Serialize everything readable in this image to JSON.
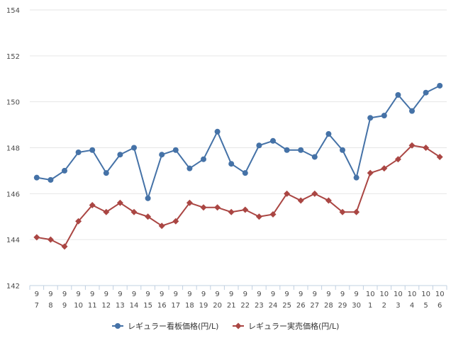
{
  "chart_data": {
    "type": "line",
    "categories": [
      [
        "9",
        "7"
      ],
      [
        "9",
        "8"
      ],
      [
        "9",
        "9"
      ],
      [
        "9",
        "10"
      ],
      [
        "9",
        "11"
      ],
      [
        "9",
        "12"
      ],
      [
        "9",
        "13"
      ],
      [
        "9",
        "14"
      ],
      [
        "9",
        "15"
      ],
      [
        "9",
        "16"
      ],
      [
        "9",
        "17"
      ],
      [
        "9",
        "18"
      ],
      [
        "9",
        "19"
      ],
      [
        "9",
        "20"
      ],
      [
        "9",
        "21"
      ],
      [
        "9",
        "22"
      ],
      [
        "9",
        "23"
      ],
      [
        "9",
        "24"
      ],
      [
        "9",
        "25"
      ],
      [
        "9",
        "26"
      ],
      [
        "9",
        "27"
      ],
      [
        "9",
        "28"
      ],
      [
        "9",
        "29"
      ],
      [
        "9",
        "30"
      ],
      [
        "10",
        "1"
      ],
      [
        "10",
        "2"
      ],
      [
        "10",
        "3"
      ],
      [
        "10",
        "4"
      ],
      [
        "10",
        "5"
      ],
      [
        "10",
        "6"
      ]
    ],
    "series": [
      {
        "name": "レギュラー看板価格(円/L)",
        "color": "#4572a7",
        "marker": "circle",
        "values": [
          146.7,
          146.6,
          147.0,
          147.8,
          147.9,
          146.9,
          147.7,
          148.0,
          145.8,
          147.7,
          147.9,
          147.1,
          147.5,
          148.7,
          147.3,
          146.9,
          148.1,
          148.3,
          147.9,
          147.9,
          147.6,
          148.6,
          147.9,
          146.7,
          149.3,
          149.4,
          150.3,
          149.6,
          150.4,
          150.7
        ]
      },
      {
        "name": "レギュラー実売価格(円/L)",
        "color": "#aa4643",
        "marker": "diamond",
        "values": [
          144.1,
          144.0,
          143.7,
          144.8,
          145.5,
          145.2,
          145.6,
          145.2,
          145.0,
          144.6,
          144.8,
          145.6,
          145.4,
          145.4,
          145.2,
          145.3,
          145.0,
          145.1,
          146.0,
          145.7,
          146.0,
          145.7,
          145.2,
          145.2,
          146.9,
          147.1,
          147.5,
          148.1,
          148.0,
          147.6
        ]
      }
    ],
    "yticks": [
      "142",
      "144",
      "146",
      "148",
      "150",
      "152",
      "154"
    ],
    "ylim": [
      142,
      154
    ],
    "grid": true,
    "legend_position": "bottom-center",
    "title": "",
    "xlabel": "",
    "ylabel": ""
  }
}
